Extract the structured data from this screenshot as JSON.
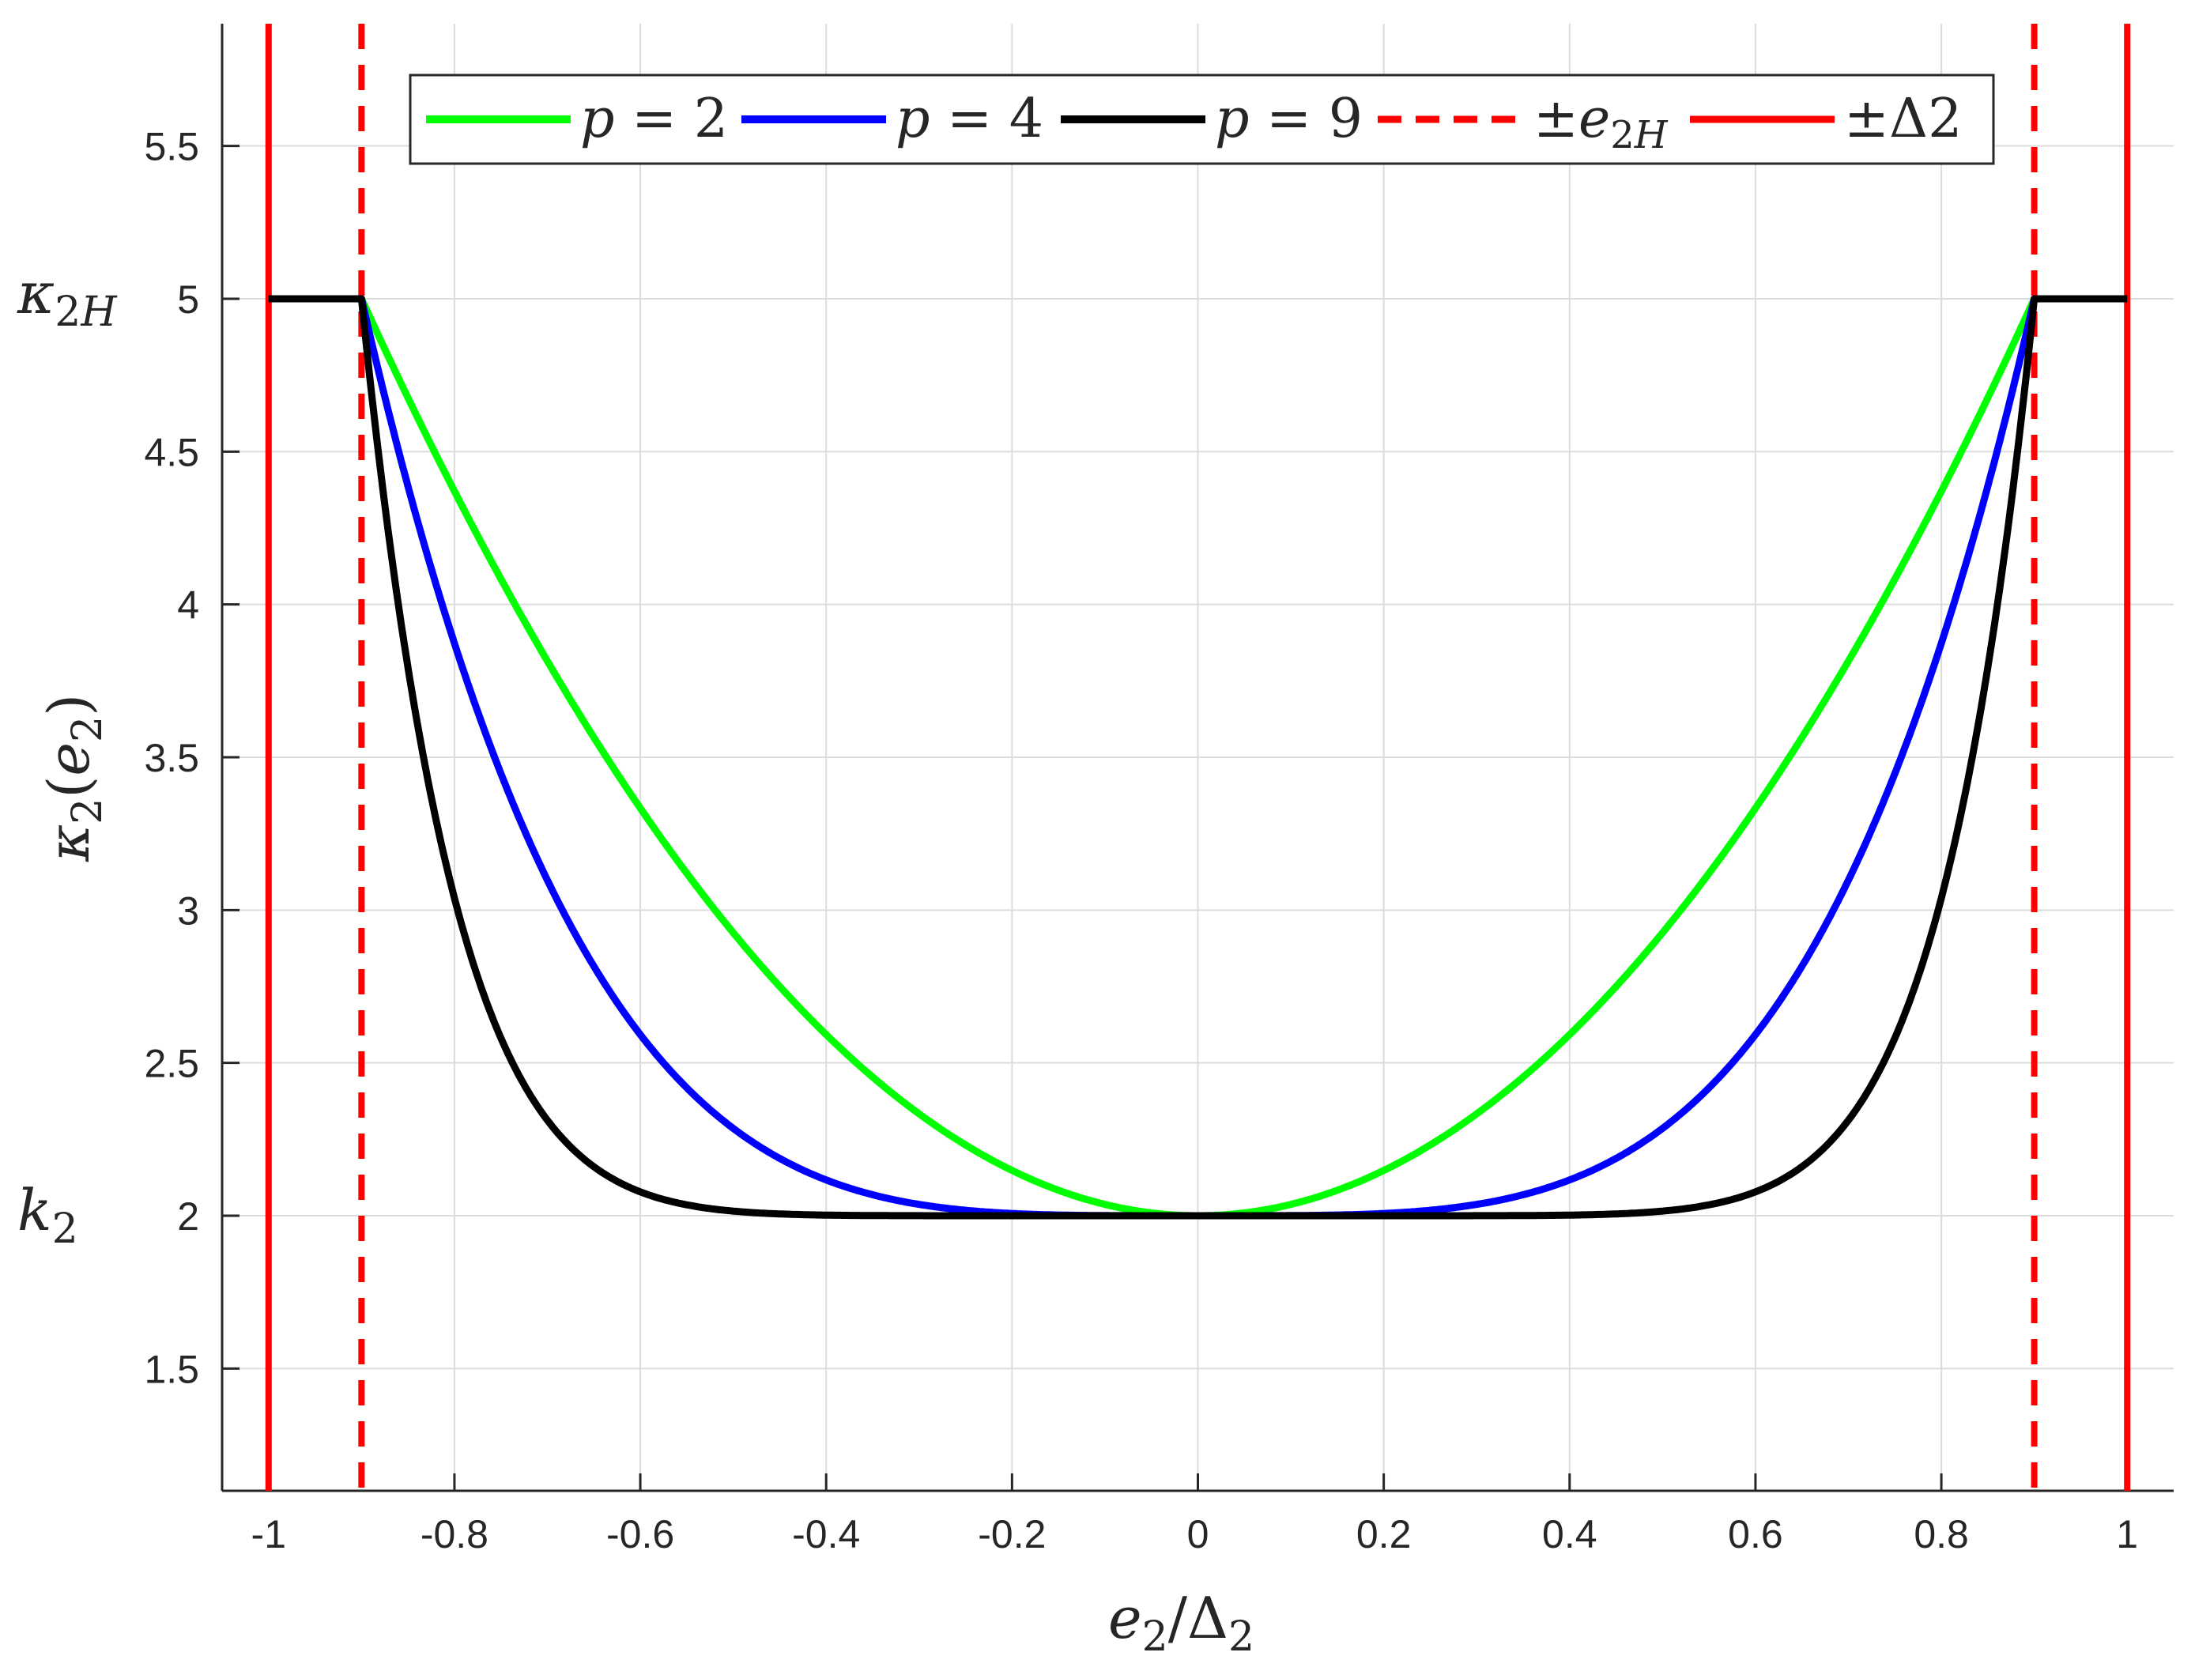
{
  "chart_data": {
    "type": "line",
    "title": "",
    "xlabel": "e2/Δ2",
    "ylabel": "κ2(e2)",
    "xlim": [
      -1.05,
      1.05
    ],
    "ylim": [
      1.1,
      5.9
    ],
    "grid": true,
    "legend_position": "top",
    "x_ticks": [
      "-1",
      "-0.8",
      "-0.6",
      "-0.4",
      "-0.2",
      "0",
      "0.2",
      "0.4",
      "0.6",
      "0.8",
      "1"
    ],
    "y_ticks": [
      "1.5",
      "2",
      "2.5",
      "3",
      "3.5",
      "4",
      "4.5",
      "5",
      "5.5"
    ],
    "y_annotations": [
      {
        "text": "κ2H",
        "y": 5
      },
      {
        "text": "k2",
        "y": 2
      }
    ],
    "parameters": {
      "k2": 2,
      "kappa2H": 5,
      "e2H": 0.9,
      "delta2": 1.0
    },
    "series": [
      {
        "name": "p = 2",
        "color": "#00ff00",
        "style": "solid",
        "p": 2,
        "x": [
          -1.0,
          -0.9,
          -0.8,
          -0.7,
          -0.6,
          -0.5,
          -0.4,
          -0.3,
          -0.2,
          -0.1,
          0.0,
          0.1,
          0.2,
          0.3,
          0.4,
          0.5,
          0.6,
          0.7,
          0.8,
          0.9,
          1.0
        ],
        "values": [
          5.0,
          5.0,
          4.37,
          3.81,
          3.33,
          2.93,
          2.59,
          2.33,
          2.15,
          2.04,
          2.0,
          2.04,
          2.15,
          2.33,
          2.59,
          2.93,
          3.33,
          3.81,
          4.37,
          5.0,
          5.0
        ]
      },
      {
        "name": "p = 4",
        "color": "#0000ff",
        "style": "solid",
        "p": 4,
        "x": [
          -1.0,
          -0.9,
          -0.8,
          -0.7,
          -0.6,
          -0.5,
          -0.4,
          -0.3,
          -0.2,
          -0.1,
          0.0,
          0.1,
          0.2,
          0.3,
          0.4,
          0.5,
          0.6,
          0.7,
          0.8,
          0.9,
          1.0
        ],
        "values": [
          5.0,
          5.0,
          3.87,
          3.1,
          2.59,
          2.29,
          2.12,
          2.04,
          2.01,
          2.0,
          2.0,
          2.0,
          2.01,
          2.04,
          2.12,
          2.29,
          2.59,
          3.1,
          3.87,
          5.0,
          5.0
        ]
      },
      {
        "name": "p = 9",
        "color": "#000000",
        "style": "solid",
        "p": 9,
        "x": [
          -1.0,
          -0.9,
          -0.8,
          -0.7,
          -0.6,
          -0.5,
          -0.4,
          -0.3,
          -0.2,
          -0.1,
          0.0,
          0.1,
          0.2,
          0.3,
          0.4,
          0.5,
          0.6,
          0.7,
          0.8,
          0.9,
          1.0
        ],
        "values": [
          5.0,
          5.0,
          3.04,
          2.31,
          2.08,
          2.02,
          2.0,
          2.0,
          2.0,
          2.0,
          2.0,
          2.0,
          2.0,
          2.0,
          2.0,
          2.02,
          2.08,
          2.31,
          3.04,
          5.0,
          5.0
        ]
      },
      {
        "name": "±e2H",
        "color": "#ff0000",
        "style": "dashed",
        "vertical_lines": [
          -0.9,
          0.9
        ]
      },
      {
        "name": "±Δ2",
        "color": "#ff0000",
        "style": "solid",
        "vertical_lines": [
          -1.0,
          1.0
        ]
      }
    ]
  }
}
